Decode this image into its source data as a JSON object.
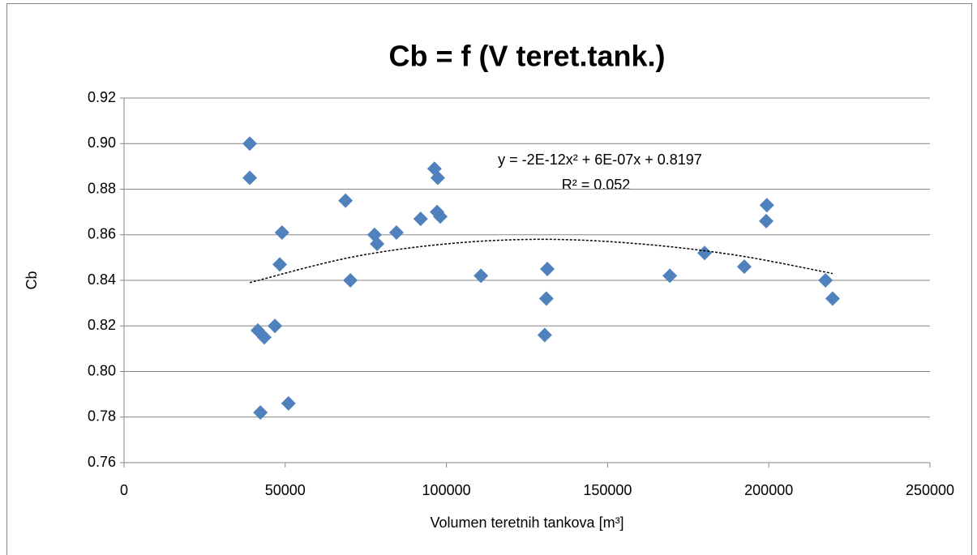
{
  "chart_data": {
    "type": "scatter",
    "title": "Cb = f (V teret.tank.)",
    "x_label": "Volumen teretnih tankova [m³]",
    "y_label": "Cb",
    "series": [
      {
        "name": "Cb",
        "color": "#4f81bd",
        "x": [
          39000,
          39000,
          41500,
          43500,
          42300,
          46800,
          48300,
          49000,
          51000,
          68700,
          70200,
          77700,
          78500,
          84500,
          92000,
          96300,
          97300,
          97100,
          98100,
          110700,
          131300,
          131000,
          130500,
          169300,
          180100,
          192400,
          199400,
          199200,
          217600,
          219800
        ],
        "values": [
          0.9,
          0.885,
          0.818,
          0.815,
          0.782,
          0.82,
          0.847,
          0.861,
          0.786,
          0.875,
          0.84,
          0.86,
          0.856,
          0.861,
          0.867,
          0.889,
          0.885,
          0.87,
          0.868,
          0.842,
          0.845,
          0.832,
          0.816,
          0.842,
          0.852,
          0.846,
          0.873,
          0.866,
          0.84,
          0.832
        ]
      }
    ],
    "trendline": {
      "color": "#000000",
      "x": [
        39000,
        70000,
        100000,
        130000,
        160000,
        190000,
        219800
      ],
      "values": [
        0.839,
        0.85,
        0.856,
        0.858,
        0.856,
        0.851,
        0.843
      ]
    },
    "annotations": [
      "y = -2E-12x² + 6E-07x + 0.8197",
      "R² = 0.052"
    ],
    "xlim": [
      0,
      250000
    ],
    "xticks": [
      0,
      50000,
      100000,
      150000,
      200000,
      250000
    ],
    "ylim": [
      0.76,
      0.92
    ],
    "yticks": [
      0.76,
      0.78,
      {
        "value": 0.8,
        "label": "0.80"
      },
      0.82,
      0.84,
      0.86,
      0.88,
      {
        "value": 0.9,
        "label": "0.90"
      },
      0.92
    ],
    "grid": true
  }
}
